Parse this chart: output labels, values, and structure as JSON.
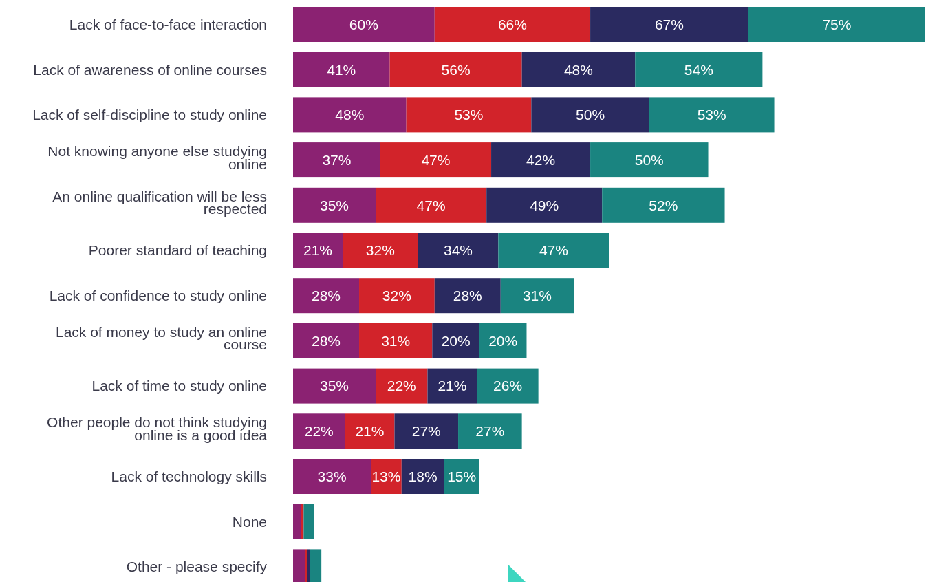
{
  "chart_data": {
    "type": "bar",
    "orientation": "horizontal",
    "stacked": true,
    "data_labels": true,
    "categories": [
      "Lack of face-to-face interaction",
      "Lack of awareness of online courses",
      "Lack of self-discipline to study online",
      "Not knowing anyone else studying online",
      "An online qualification will be less respected",
      "Poorer standard of teaching",
      "Lack of confidence to study online",
      "Lack of money to study an online course",
      "Lack of time to study online",
      "Other people do not think studying online is a good idea",
      "Lack of technology skills",
      "None",
      "Other - please specify"
    ],
    "series": [
      {
        "color": "#8b2272",
        "values": [
          60,
          41,
          48,
          37,
          35,
          21,
          28,
          28,
          35,
          22,
          33,
          3.5,
          5
        ],
        "value_labels": [
          "60%",
          "41%",
          "48%",
          "37%",
          "35%",
          "21%",
          "28%",
          "28%",
          "35%",
          "22%",
          "33%",
          null,
          null
        ]
      },
      {
        "color": "#d2232a",
        "values": [
          66,
          56,
          53,
          47,
          47,
          32,
          32,
          31,
          22,
          21,
          13,
          1,
          1
        ],
        "value_labels": [
          "66%",
          "56%",
          "53%",
          "47%",
          "47%",
          "32%",
          "32%",
          "31%",
          "22%",
          "21%",
          "13%",
          null,
          null
        ]
      },
      {
        "color": "#2a2a60",
        "values": [
          67,
          48,
          50,
          42,
          49,
          34,
          28,
          20,
          21,
          27,
          18,
          0,
          1
        ],
        "value_labels": [
          "67%",
          "48%",
          "50%",
          "42%",
          "49%",
          "34%",
          "28%",
          "20%",
          "21%",
          "27%",
          "18%",
          null,
          null
        ]
      },
      {
        "color": "#1a8480",
        "values": [
          75,
          54,
          53,
          50,
          52,
          47,
          31,
          20,
          26,
          27,
          15,
          4.5,
          5
        ],
        "value_labels": [
          "75%",
          "54%",
          "53%",
          "50%",
          "52%",
          "47%",
          "31%",
          "20%",
          "26%",
          "27%",
          "15%",
          null,
          null
        ]
      }
    ]
  }
}
